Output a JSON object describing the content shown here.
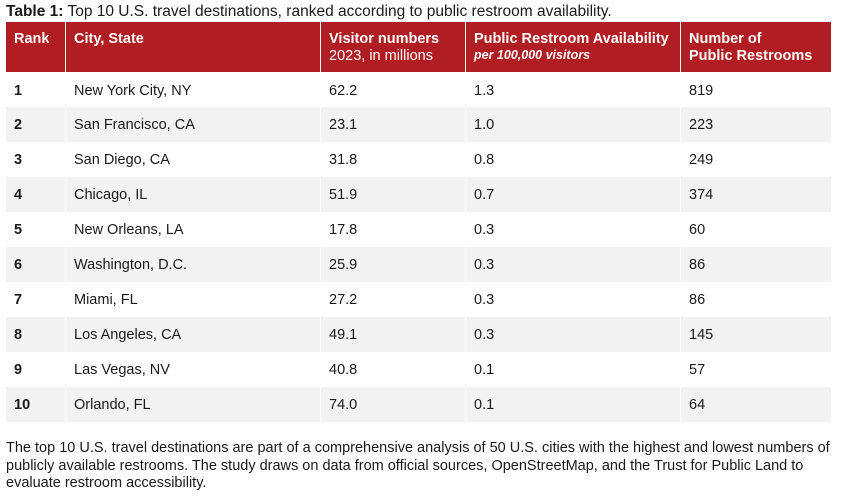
{
  "caption": {
    "label": "Table 1:",
    "text": "Top 10 U.S. travel destinations, ranked according to public restroom availability."
  },
  "columns": [
    {
      "title": "Rank",
      "subtitle": ""
    },
    {
      "title": "City, State",
      "subtitle": ""
    },
    {
      "title": "Visitor numbers",
      "subtitle": "2023, in millions"
    },
    {
      "title": "Public Restroom Availability",
      "subtitle": "per 100,000 visitors"
    },
    {
      "title": "Number of",
      "subtitle": "Public Restrooms"
    }
  ],
  "rows": [
    {
      "rank": "1",
      "city": "New York City, NY",
      "visitors": "62.2",
      "availability": "1.3",
      "restrooms": "819"
    },
    {
      "rank": "2",
      "city": "San Francisco, CA",
      "visitors": "23.1",
      "availability": "1.0",
      "restrooms": "223"
    },
    {
      "rank": "3",
      "city": "San Diego, CA",
      "visitors": "31.8",
      "availability": "0.8",
      "restrooms": "249"
    },
    {
      "rank": "4",
      "city": "Chicago, IL",
      "visitors": "51.9",
      "availability": "0.7",
      "restrooms": "374"
    },
    {
      "rank": "5",
      "city": "New Orleans, LA",
      "visitors": "17.8",
      "availability": "0.3",
      "restrooms": "60"
    },
    {
      "rank": "6",
      "city": "Washington, D.C.",
      "visitors": "25.9",
      "availability": "0.3",
      "restrooms": "86"
    },
    {
      "rank": "7",
      "city": "Miami, FL",
      "visitors": "27.2",
      "availability": "0.3",
      "restrooms": "86"
    },
    {
      "rank": "8",
      "city": "Los Angeles, CA",
      "visitors": "49.1",
      "availability": "0.3",
      "restrooms": "145"
    },
    {
      "rank": "9",
      "city": "Las Vegas, NV",
      "visitors": "40.8",
      "availability": "0.1",
      "restrooms": "57"
    },
    {
      "rank": "10",
      "city": "Orlando, FL",
      "visitors": "74.0",
      "availability": "0.1",
      "restrooms": "64"
    }
  ],
  "footnote": "The top 10 U.S. travel destinations are part of a comprehensive analysis of 50 U.S. cities with the highest and lowest numbers of publicly available restrooms. The study draws on data from official sources, OpenStreetMap, and the Trust for Public Land to evaluate restroom accessibility.",
  "colors": {
    "header_background": "#b01e24",
    "header_text": "#ffffff",
    "stripe_row": "#f2f2f2"
  }
}
